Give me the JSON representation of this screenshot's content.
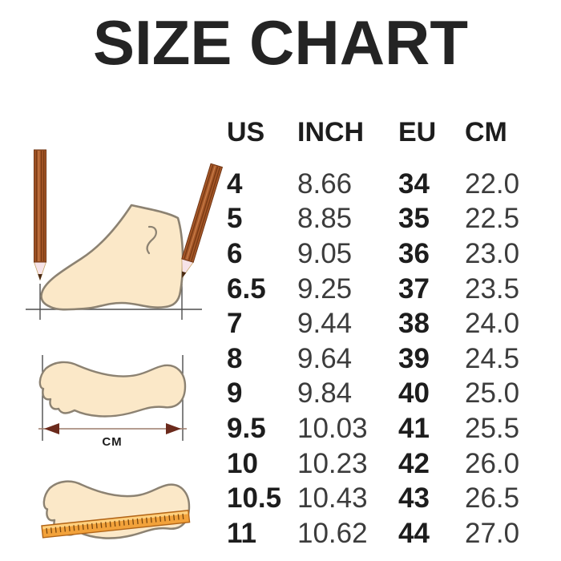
{
  "page": {
    "title": "SIZE CHART"
  },
  "chart_data": {
    "type": "table",
    "title": "SIZE CHART",
    "columns": [
      "US",
      "INCH",
      "EU",
      "CM"
    ],
    "rows": [
      [
        "4",
        "8.66",
        "34",
        "22.0"
      ],
      [
        "5",
        "8.85",
        "35",
        "22.5"
      ],
      [
        "6",
        "9.05",
        "36",
        "23.0"
      ],
      [
        "6.5",
        "9.25",
        "37",
        "23.5"
      ],
      [
        "7",
        "9.44",
        "38",
        "24.0"
      ],
      [
        "8",
        "9.64",
        "39",
        "24.5"
      ],
      [
        "9",
        "9.84",
        "40",
        "25.0"
      ],
      [
        "9.5",
        "10.03",
        "41",
        "25.5"
      ],
      [
        "10",
        "10.23",
        "42",
        "26.0"
      ],
      [
        "10.5",
        "10.43",
        "43",
        "26.5"
      ],
      [
        "11",
        "10.62",
        "44",
        "27.0"
      ]
    ]
  },
  "illustrations": {
    "length_unit_label": "CM"
  },
  "colors": {
    "title_text": "#242424",
    "table_bold_text": "#1d1d1d",
    "table_light_text": "#3c3c3c",
    "foot_fill": "#FBE8C8",
    "foot_outline": "#8C8272",
    "pencil_body": "#A8592A",
    "pencil_stripe": "#7A3B14",
    "pencil_wood": "#F6E3E8",
    "pencil_lead": "#4A2A10",
    "ruler_fill": "#F2A23B",
    "ruler_band": "#FFD07E",
    "arrowhead": "#6B2A1C",
    "guide_line": "#4D4D4D"
  }
}
